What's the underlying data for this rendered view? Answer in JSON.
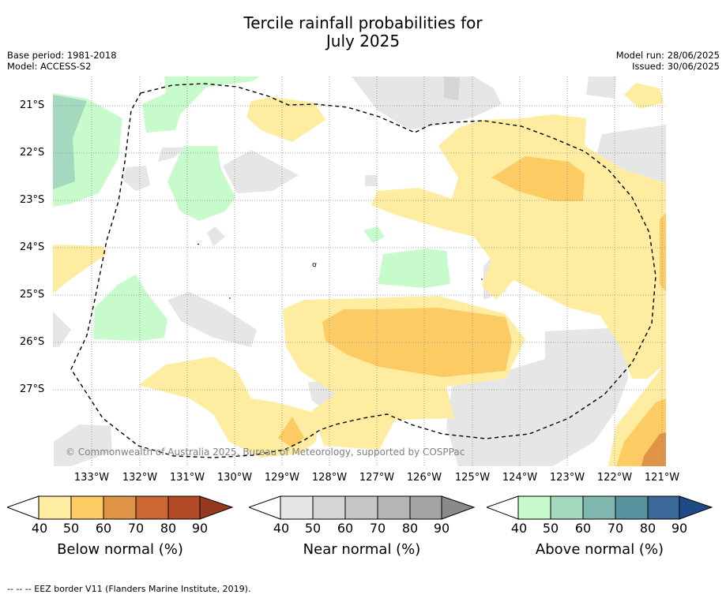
{
  "title_line1": "Tercile rainfall probabilities for",
  "title_line2": "July 2025",
  "base_period": "Base period: 1981-2018",
  "model": "Model: ACCESS-S2",
  "model_run": "Model run: 28/06/2025",
  "issued": "Issued: 30/06/2025",
  "lat_labels": [
    "21°S",
    "22°S",
    "23°S",
    "24°S",
    "25°S",
    "26°S",
    "27°S"
  ],
  "lon_labels": [
    "133°W",
    "132°W",
    "131°W",
    "130°W",
    "129°W",
    "128°W",
    "127°W",
    "126°W",
    "125°W",
    "124°W",
    "123°W",
    "122°W",
    "121°W"
  ],
  "copyright": "© Commonwealth of Australia 2025, Bureau of Meteorology, supported by COSPPac",
  "legend": {
    "below": {
      "title": "Below normal (%)",
      "ticks": [
        "40",
        "50",
        "60",
        "70",
        "80",
        "90"
      ],
      "colors": [
        "#feeda0",
        "#fdcb64",
        "#e09448",
        "#cc6632",
        "#b24a27",
        "#95381e"
      ]
    },
    "near": {
      "title": "Near normal (%)",
      "ticks": [
        "40",
        "50",
        "60",
        "70",
        "80",
        "90"
      ],
      "colors": [
        "#e6e6e6",
        "#d5d5d5",
        "#c6c6c6",
        "#b5b5b5",
        "#a4a4a4",
        "#8a8a8a"
      ]
    },
    "above": {
      "title": "Above normal (%)",
      "ticks": [
        "40",
        "50",
        "60",
        "70",
        "80",
        "90"
      ],
      "colors": [
        "#c8fbcb",
        "#a4d9bf",
        "#80b8b0",
        "#5a93a0",
        "#3a6898",
        "#1e4b85"
      ]
    }
  },
  "footer": "--  --  -- EEZ border V11 (Flanders Marine Institute, 2019)."
}
